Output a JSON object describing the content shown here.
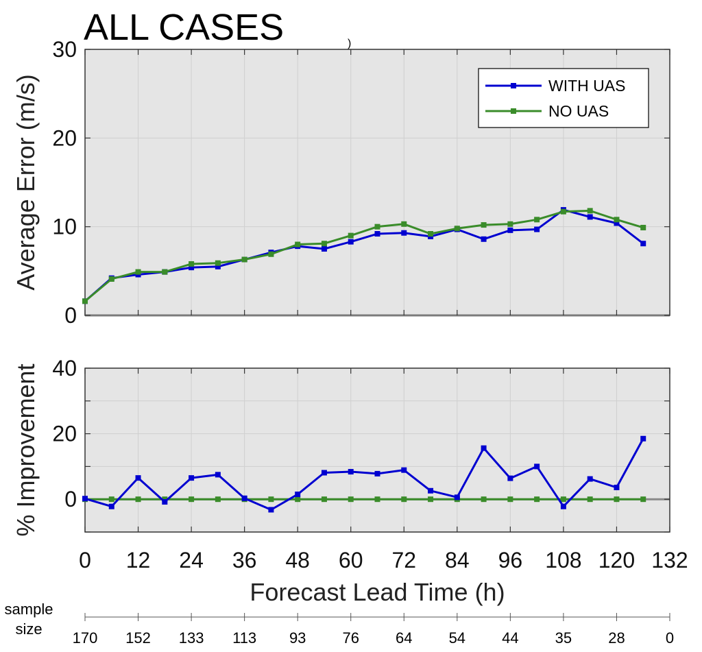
{
  "title": "ALL CASES",
  "stray_mark": ")",
  "chart_data": [
    {
      "type": "line",
      "ylabel": "Average Error (m/s)",
      "ylim": [
        0,
        30
      ],
      "yticks": [
        0,
        10,
        20,
        30
      ],
      "xlim": [
        0,
        132
      ],
      "xticks": [
        0,
        12,
        24,
        36,
        48,
        60,
        72,
        84,
        96,
        108,
        120,
        132
      ],
      "grid": true,
      "legend_position": "top-right",
      "x": [
        0,
        6,
        12,
        18,
        24,
        30,
        36,
        42,
        48,
        54,
        60,
        66,
        72,
        78,
        84,
        90,
        96,
        102,
        108,
        114,
        120,
        126
      ],
      "series": [
        {
          "name": "WITH UAS",
          "color": "#0000d0",
          "values": [
            1.6,
            4.2,
            4.6,
            4.9,
            5.4,
            5.5,
            6.3,
            7.1,
            7.8,
            7.5,
            8.3,
            9.2,
            9.3,
            8.9,
            9.7,
            8.6,
            9.6,
            9.7,
            11.9,
            11.1,
            10.4,
            8.1
          ]
        },
        {
          "name": "NO UAS",
          "color": "#3a8c2a",
          "values": [
            1.6,
            4.1,
            4.9,
            4.9,
            5.8,
            5.9,
            6.3,
            6.9,
            8.0,
            8.1,
            9.0,
            10.0,
            10.3,
            9.2,
            9.8,
            10.2,
            10.3,
            10.8,
            11.7,
            11.8,
            10.8,
            9.9
          ]
        }
      ]
    },
    {
      "type": "line",
      "ylabel": "% Improvement",
      "xlabel": "Forecast Lead Time (h)",
      "ylim": [
        -10,
        40
      ],
      "yticks": [
        0,
        20,
        40
      ],
      "xlim": [
        0,
        132
      ],
      "xticks": [
        0,
        12,
        24,
        36,
        48,
        60,
        72,
        84,
        96,
        108,
        120,
        132
      ],
      "grid": true,
      "x": [
        0,
        6,
        12,
        18,
        24,
        30,
        36,
        42,
        48,
        54,
        60,
        66,
        72,
        78,
        84,
        90,
        96,
        102,
        108,
        114,
        120,
        126
      ],
      "series": [
        {
          "name": "WITH UAS",
          "color": "#0000d0",
          "values": [
            0.2,
            -2.2,
            6.5,
            -0.8,
            6.5,
            7.5,
            0.3,
            -3.2,
            1.5,
            8.1,
            8.4,
            7.8,
            8.9,
            2.6,
            0.6,
            15.6,
            6.4,
            10.0,
            -2.2,
            6.2,
            3.6,
            18.5
          ]
        },
        {
          "name": "NO UAS",
          "color": "#3a8c2a",
          "values": [
            0,
            0,
            0,
            0,
            0,
            0,
            0,
            0,
            0,
            0,
            0,
            0,
            0,
            0,
            0,
            0,
            0,
            0,
            0,
            0,
            0,
            0
          ]
        }
      ]
    }
  ],
  "sample_size": {
    "label_line1": "sample",
    "label_line2": "size",
    "values": [
      "170",
      "152",
      "133",
      "113",
      "93",
      "76",
      "64",
      "54",
      "44",
      "35",
      "28",
      "0"
    ]
  }
}
